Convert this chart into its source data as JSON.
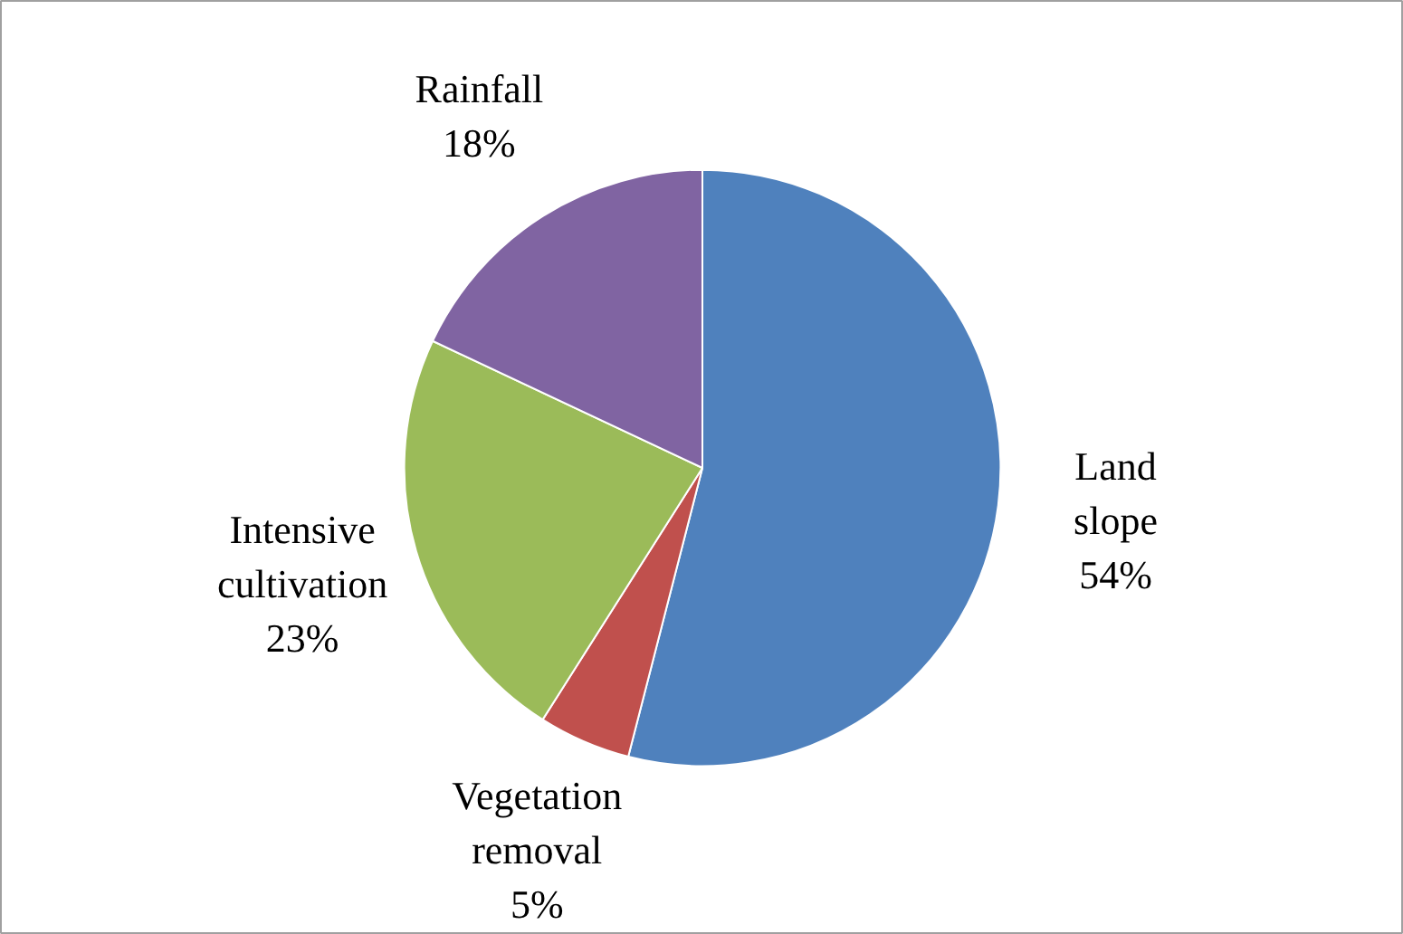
{
  "chart_data": {
    "type": "pie",
    "categories": [
      "Land slope",
      "Vegetation removal",
      "Intensive cultivation",
      "Rainfall"
    ],
    "values": [
      54,
      5,
      23,
      18
    ],
    "colors": [
      "#4f81bd",
      "#c0504d",
      "#9bbb59",
      "#8064a2"
    ],
    "value_labels": [
      "54%",
      "5%",
      "23%",
      "18%"
    ]
  }
}
